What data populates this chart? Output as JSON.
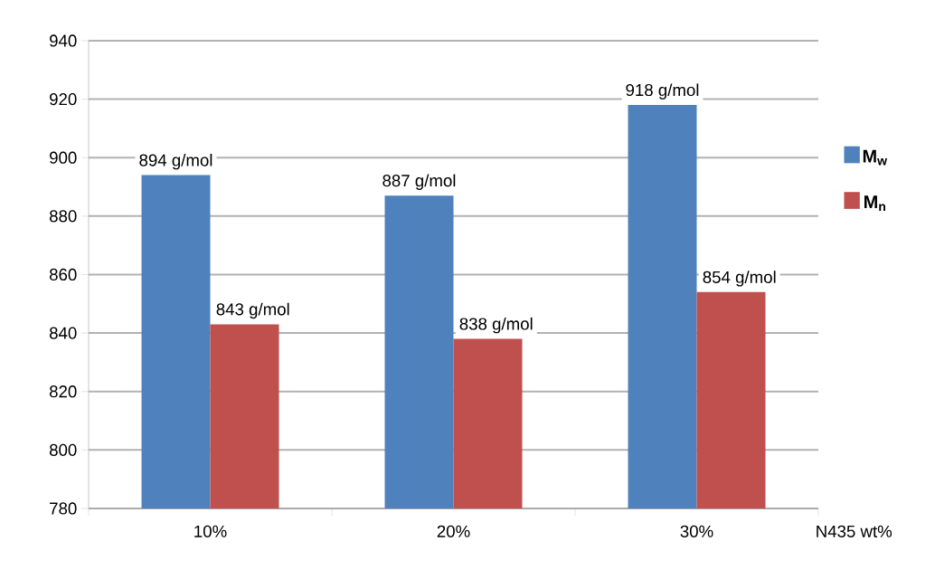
{
  "chart_data": {
    "type": "bar",
    "xlabel": "N435 wt%",
    "categories": [
      "10%",
      "20%",
      "30%"
    ],
    "series": [
      {
        "name": "M$_{w}$",
        "color": "#4f81bd",
        "values": [
          894,
          887,
          918
        ],
        "value_labels": [
          "894 g/mol",
          "887 g/mol",
          "918 g/mol"
        ]
      },
      {
        "name": "M$_{n}$",
        "color": "#c0504d",
        "values": [
          843,
          838,
          854
        ],
        "value_labels": [
          "843 g/mol",
          "838 g/mol",
          "854 g/mol"
        ]
      }
    ],
    "ylim": [
      780,
      940
    ],
    "yticks": [
      780,
      800,
      820,
      840,
      860,
      880,
      900,
      920,
      940
    ],
    "grid": "y",
    "legend": "right"
  }
}
